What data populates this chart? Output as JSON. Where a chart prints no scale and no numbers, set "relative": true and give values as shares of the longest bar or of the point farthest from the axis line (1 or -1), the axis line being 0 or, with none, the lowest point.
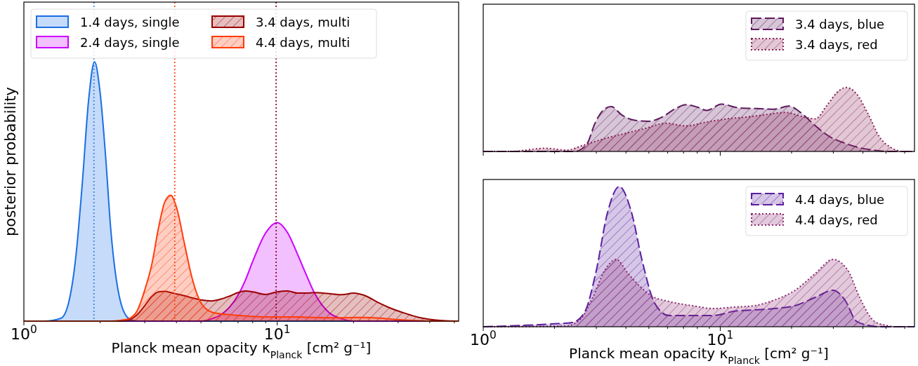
{
  "chart_data": [
    {
      "type": "area",
      "relative": true,
      "ylabel": "posterior probability",
      "xlabel": "Planck mean opacity κ$_{Planck}$ [cm² g⁻¹]",
      "log": "x",
      "xlim": [
        1,
        52
      ],
      "xticks": [
        {
          "value": 1,
          "label": "10$^{0}$"
        },
        {
          "value": 2,
          "label": null
        },
        {
          "value": 3,
          "label": null
        },
        {
          "value": 4,
          "label": null
        },
        {
          "value": 5,
          "label": null
        },
        {
          "value": 6,
          "label": null
        },
        {
          "value": 7,
          "label": null
        },
        {
          "value": 8,
          "label": null
        },
        {
          "value": 9,
          "label": null
        },
        {
          "value": 10,
          "label": "10$^{1}$"
        },
        {
          "value": 20,
          "label": null
        },
        {
          "value": 30,
          "label": null
        },
        {
          "value": 40,
          "label": null
        },
        {
          "value": 50,
          "label": null
        }
      ],
      "tick_labels": "x",
      "legend": "top left",
      "line_style": "solid",
      "x": [
        1,
        1.2,
        1.4,
        1.5,
        1.6,
        1.7,
        1.8,
        1.9,
        2.0,
        2.1,
        2.2,
        2.4,
        2.6,
        2.8,
        3.0,
        3.2,
        3.4,
        3.6,
        3.8,
        4.0,
        4.3,
        4.6,
        5,
        5.5,
        6,
        6.5,
        7,
        7.5,
        8,
        9,
        10,
        11,
        12,
        13,
        14,
        16,
        18,
        20,
        22,
        25,
        28,
        32,
        36,
        40,
        45,
        52
      ],
      "series": [
        {
          "name": "1.4 days, single",
          "color": "#1a6fe6",
          "values": [
            0,
            0,
            0.011,
            0.069,
            0.24,
            0.53,
            0.85,
            1.0,
            0.88,
            0.64,
            0.36,
            0.08,
            0.01,
            0,
            0,
            0,
            0,
            0,
            0,
            0,
            0,
            0,
            0,
            0,
            0,
            0,
            0,
            0,
            0,
            0,
            0,
            0,
            0,
            0,
            0,
            0,
            0,
            0,
            0,
            0,
            0,
            0,
            0,
            0,
            0,
            0
          ]
        },
        {
          "name": "2.4 days, single",
          "color": "#cc00ff",
          "values": [
            0,
            0,
            0,
            0,
            0,
            0,
            0,
            0,
            0,
            0,
            0,
            0,
            0,
            0,
            0,
            0,
            0,
            0,
            0,
            0,
            0,
            0,
            0,
            0.009,
            0.025,
            0.055,
            0.1,
            0.16,
            0.23,
            0.34,
            0.38,
            0.34,
            0.26,
            0.18,
            0.11,
            0.033,
            0.009,
            0,
            0,
            0,
            0,
            0,
            0,
            0,
            0,
            0
          ]
        },
        {
          "name": "3.4 days, multi",
          "color": "#990000",
          "values": [
            0,
            0,
            0,
            0,
            0,
            0,
            0,
            0,
            0,
            0,
            0,
            0,
            0.005,
            0.025,
            0.06,
            0.095,
            0.113,
            0.115,
            0.11,
            0.105,
            0.098,
            0.09,
            0.082,
            0.078,
            0.085,
            0.097,
            0.11,
            0.116,
            0.113,
            0.103,
            0.113,
            0.116,
            0.108,
            0.108,
            0.11,
            0.106,
            0.102,
            0.108,
            0.1,
            0.072,
            0.05,
            0.03,
            0.015,
            0.007,
            0.002,
            0
          ]
        },
        {
          "name": "4.4 days, multi",
          "color": "#ff3d0d",
          "values": [
            0,
            0,
            0,
            0,
            0,
            0,
            0,
            0,
            0,
            0,
            0,
            0.003,
            0.01,
            0.04,
            0.12,
            0.22,
            0.36,
            0.46,
            0.485,
            0.44,
            0.3,
            0.17,
            0.07,
            0.035,
            0.028,
            0.025,
            0.022,
            0.02,
            0.018,
            0.016,
            0.016,
            0.016,
            0.016,
            0.015,
            0.014,
            0.013,
            0.013,
            0.014,
            0.014,
            0.012,
            0.008,
            0.004,
            0.002,
            0,
            0,
            0
          ]
        }
      ],
      "ref_lines": [
        {
          "axis": "x",
          "value": 1.89,
          "color": "#3b86e8",
          "line_style": "dotted"
        },
        {
          "axis": "x",
          "value": 3.94,
          "color": "#ff4a1a",
          "line_style": "dotted"
        },
        {
          "axis": "x",
          "value": 9.9,
          "color": "#8b0a3a",
          "line_style": "dotted"
        }
      ]
    },
    {
      "type": "area",
      "relative": true,
      "log": "x",
      "xlim": [
        1,
        66
      ],
      "xticks": [
        {
          "value": 1,
          "label": null
        },
        {
          "value": 2,
          "label": null
        },
        {
          "value": 3,
          "label": null
        },
        {
          "value": 4,
          "label": null
        },
        {
          "value": 5,
          "label": null
        },
        {
          "value": 6,
          "label": null
        },
        {
          "value": 7,
          "label": null
        },
        {
          "value": 8,
          "label": null
        },
        {
          "value": 9,
          "label": null
        },
        {
          "value": 10,
          "label": null
        },
        {
          "value": 20,
          "label": null
        },
        {
          "value": 30,
          "label": null
        },
        {
          "value": 40,
          "label": null
        },
        {
          "value": 50,
          "label": null
        },
        {
          "value": 60,
          "label": null
        }
      ],
      "tick_labels": false,
      "legend": "top right",
      "series": [
        {
          "name": "3.4 days, blue",
          "color": "#5e1a5e",
          "line_style": "dashed",
          "x": [
            1,
            2,
            2.43,
            2.73,
            2.97,
            3.24,
            3.47,
            3.84,
            4.32,
            4.96,
            5.71,
            6.41,
            7.2,
            8.04,
            8.78,
            10.1,
            12.0,
            14.3,
            16.9,
            19.5,
            21.8,
            25.2,
            29.0,
            33.5,
            38.5,
            44.4,
            51.2,
            66
          ],
          "values": [
            0,
            0,
            0,
            0.11,
            0.45,
            0.66,
            0.7,
            0.57,
            0.49,
            0.47,
            0.54,
            0.66,
            0.73,
            0.69,
            0.64,
            0.74,
            0.68,
            0.67,
            0.66,
            0.71,
            0.61,
            0.4,
            0.23,
            0.13,
            0.06,
            0.02,
            0,
            0
          ]
        },
        {
          "name": "3.4 days, red",
          "color": "#8b2257",
          "line_style": "dotted",
          "x": [
            1,
            1.3,
            1.83,
            2.24,
            2.66,
            3.24,
            3.95,
            4.82,
            5.89,
            7.19,
            8.77,
            10.7,
            13.1,
            15.9,
            18.9,
            22.4,
            25.2,
            28.2,
            31.5,
            33.9,
            37.4,
            42.0,
            47.1,
            52.6,
            59.1,
            66
          ],
          "values": [
            0,
            0,
            0.05,
            0.02,
            0.1,
            0.2,
            0.28,
            0.36,
            0.44,
            0.4,
            0.46,
            0.51,
            0.54,
            0.58,
            0.61,
            0.54,
            0.51,
            0.72,
            0.94,
            1.0,
            0.91,
            0.59,
            0.22,
            0.06,
            0,
            0
          ]
        }
      ]
    },
    {
      "type": "area",
      "relative": true,
      "xlabel": "Planck mean opacity κ$_{Planck}$ [cm² g⁻¹]",
      "log": "x",
      "xlim": [
        1,
        66
      ],
      "xticks": [
        {
          "value": 1,
          "label": "10$^{0}$"
        },
        {
          "value": 2,
          "label": null
        },
        {
          "value": 3,
          "label": null
        },
        {
          "value": 4,
          "label": null
        },
        {
          "value": 5,
          "label": null
        },
        {
          "value": 6,
          "label": null
        },
        {
          "value": 7,
          "label": null
        },
        {
          "value": 8,
          "label": null
        },
        {
          "value": 9,
          "label": null
        },
        {
          "value": 10,
          "label": "10$^{1}$"
        },
        {
          "value": 20,
          "label": null
        },
        {
          "value": 30,
          "label": null
        },
        {
          "value": 40,
          "label": null
        },
        {
          "value": 50,
          "label": null
        },
        {
          "value": 60,
          "label": null
        }
      ],
      "tick_labels": "x",
      "legend": "top right",
      "series": [
        {
          "name": "4.4 days, blue",
          "color": "#5a1fa0",
          "line_style": "dashed",
          "x": [
            1,
            1.95,
            2.37,
            2.67,
            2.99,
            3.34,
            3.75,
            4.2,
            4.7,
            5.28,
            6.08,
            7.64,
            9.31,
            11.4,
            13.9,
            16.9,
            20.7,
            25.2,
            29.9,
            33.6,
            37.5,
            42.2,
            47.0,
            66
          ],
          "values": [
            0,
            0.02,
            0.03,
            0.1,
            0.39,
            0.81,
            1.0,
            0.83,
            0.46,
            0.17,
            0.08,
            0.08,
            0.08,
            0.11,
            0.12,
            0.13,
            0.15,
            0.21,
            0.26,
            0.19,
            0.04,
            0.01,
            0,
            0
          ]
        },
        {
          "name": "4.4 days, red",
          "color": "#8b2a72",
          "line_style": "dotted",
          "x": [
            1,
            2.24,
            2.59,
            2.9,
            3.25,
            3.64,
            4.08,
            4.57,
            5.13,
            6.08,
            7.64,
            9.31,
            11.4,
            13.9,
            16.9,
            20.7,
            25.2,
            29.9,
            34.6,
            38.7,
            44.6,
            50.0,
            55,
            66
          ],
          "values": [
            0,
            0.005,
            0.06,
            0.21,
            0.4,
            0.48,
            0.38,
            0.29,
            0.22,
            0.18,
            0.15,
            0.13,
            0.14,
            0.15,
            0.19,
            0.26,
            0.38,
            0.48,
            0.4,
            0.21,
            0.04,
            0.01,
            0,
            0
          ]
        }
      ]
    }
  ]
}
